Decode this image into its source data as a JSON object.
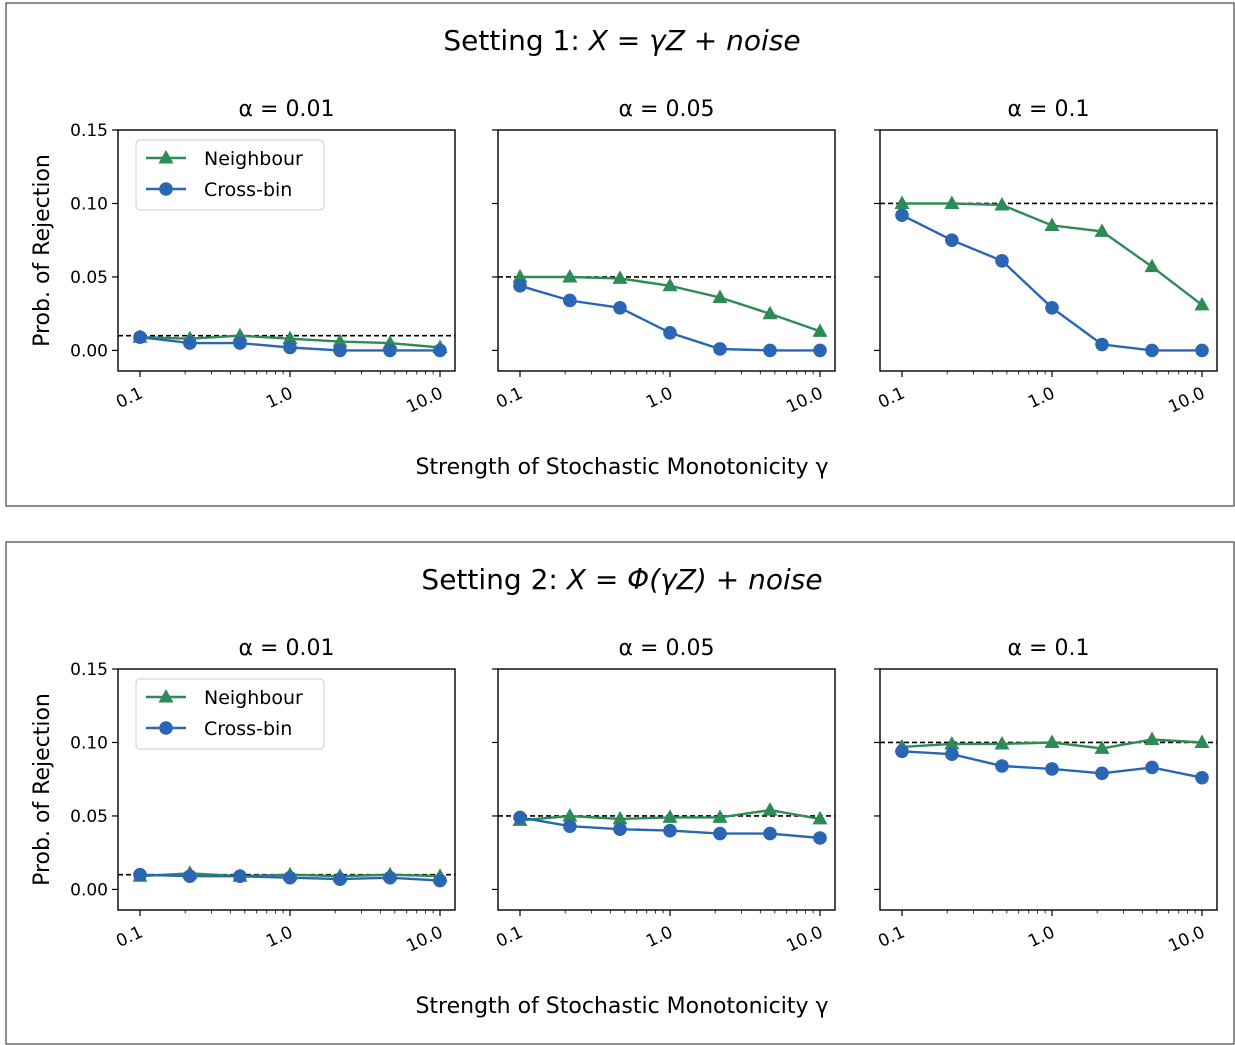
{
  "settings": [
    {
      "title_prefix": "Setting 1: ",
      "title_math": "X = γZ + noise",
      "xlabel": "Strength of Stochastic Monotonicity γ"
    },
    {
      "title_prefix": "Setting 2: ",
      "title_math": "X = Φ(γZ) + noise",
      "xlabel": "Strength of Stochastic Monotonicity γ"
    }
  ],
  "ylabel": "Prob. of Rejection",
  "legend": {
    "neighbour": "Neighbour",
    "crossbin": "Cross-bin"
  },
  "colors": {
    "neighbour": "#2e8b57",
    "crossbin": "#2a66b4",
    "reference": "#000000"
  },
  "chart_data": [
    {
      "type": "line",
      "setting": "Setting 1",
      "xscale": "log",
      "x": [
        0.1,
        0.215,
        0.464,
        1.0,
        2.154,
        4.642,
        10.0
      ],
      "xticks": [
        "0.1",
        "1.0",
        "10.0"
      ],
      "ylim": [
        -0.014,
        0.15
      ],
      "yticks": [
        "0.00",
        "0.05",
        "0.10",
        "0.15"
      ],
      "panels": [
        {
          "title": "α = 0.01",
          "alpha": 0.01,
          "series": [
            {
              "name": "Neighbour",
              "marker": "triangle",
              "values": [
                0.009,
                0.008,
                0.01,
                0.008,
                0.006,
                0.005,
                0.002
              ]
            },
            {
              "name": "Cross-bin",
              "marker": "circle",
              "values": [
                0.009,
                0.005,
                0.005,
                0.002,
                0.0,
                0.0,
                0.0
              ]
            }
          ]
        },
        {
          "title": "α = 0.05",
          "alpha": 0.05,
          "series": [
            {
              "name": "Neighbour",
              "marker": "triangle",
              "values": [
                0.05,
                0.05,
                0.049,
                0.044,
                0.036,
                0.025,
                0.013
              ]
            },
            {
              "name": "Cross-bin",
              "marker": "circle",
              "values": [
                0.044,
                0.034,
                0.029,
                0.012,
                0.001,
                0.0,
                0.0
              ]
            }
          ]
        },
        {
          "title": "α = 0.1",
          "alpha": 0.1,
          "series": [
            {
              "name": "Neighbour",
              "marker": "triangle",
              "values": [
                0.1,
                0.1,
                0.099,
                0.085,
                0.081,
                0.057,
                0.031
              ]
            },
            {
              "name": "Cross-bin",
              "marker": "circle",
              "values": [
                0.092,
                0.075,
                0.061,
                0.029,
                0.004,
                0.0,
                0.0
              ]
            }
          ]
        }
      ]
    },
    {
      "type": "line",
      "setting": "Setting 2",
      "xscale": "log",
      "x": [
        0.1,
        0.215,
        0.464,
        1.0,
        2.154,
        4.642,
        10.0
      ],
      "xticks": [
        "0.1",
        "1.0",
        "10.0"
      ],
      "ylim": [
        -0.014,
        0.15
      ],
      "yticks": [
        "0.00",
        "0.05",
        "0.10",
        "0.15"
      ],
      "panels": [
        {
          "title": "α = 0.01",
          "alpha": 0.01,
          "series": [
            {
              "name": "Neighbour",
              "marker": "triangle",
              "values": [
                0.009,
                0.011,
                0.009,
                0.01,
                0.009,
                0.01,
                0.009
              ]
            },
            {
              "name": "Cross-bin",
              "marker": "circle",
              "values": [
                0.01,
                0.009,
                0.009,
                0.008,
                0.007,
                0.008,
                0.006
              ]
            }
          ]
        },
        {
          "title": "α = 0.05",
          "alpha": 0.05,
          "series": [
            {
              "name": "Neighbour",
              "marker": "triangle",
              "values": [
                0.047,
                0.05,
                0.048,
                0.049,
                0.049,
                0.054,
                0.048
              ]
            },
            {
              "name": "Cross-bin",
              "marker": "circle",
              "values": [
                0.049,
                0.043,
                0.041,
                0.04,
                0.038,
                0.038,
                0.035
              ]
            }
          ]
        },
        {
          "title": "α = 0.1",
          "alpha": 0.1,
          "series": [
            {
              "name": "Neighbour",
              "marker": "triangle",
              "values": [
                0.097,
                0.099,
                0.099,
                0.1,
                0.096,
                0.102,
                0.1
              ]
            },
            {
              "name": "Cross-bin",
              "marker": "circle",
              "values": [
                0.094,
                0.092,
                0.084,
                0.082,
                0.079,
                0.083,
                0.076
              ]
            }
          ]
        }
      ]
    }
  ]
}
